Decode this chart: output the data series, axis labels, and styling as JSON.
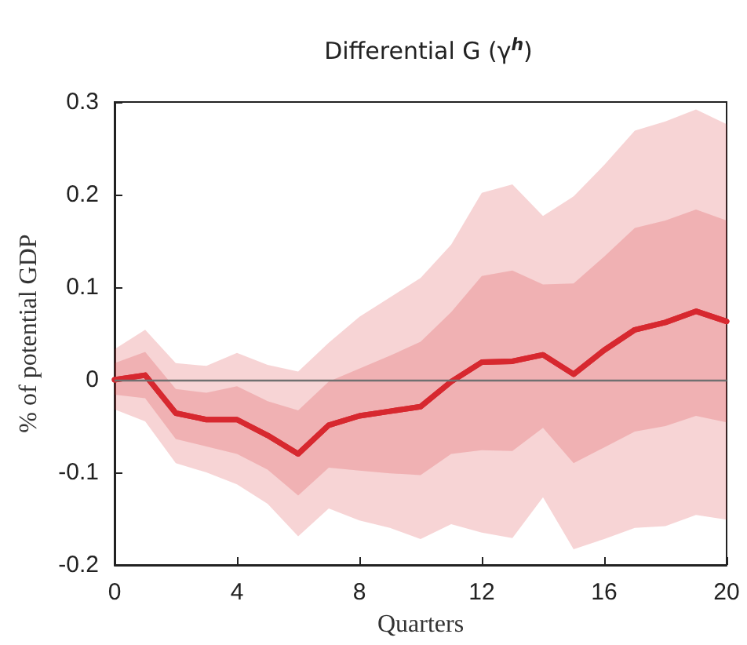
{
  "chart_data": {
    "type": "line",
    "title": "Differential G (γ$^{h}$)",
    "xlabel": "Quarters",
    "ylabel": "% of potential GDP",
    "x": [
      0,
      1,
      2,
      3,
      4,
      5,
      6,
      7,
      8,
      9,
      10,
      11,
      12,
      13,
      14,
      15,
      16,
      17,
      18,
      19,
      20
    ],
    "series": [
      {
        "type": "line",
        "color": "#d7282f",
        "values": [
          0,
          0.005,
          -0.036,
          -0.043,
          -0.043,
          -0.06,
          -0.08,
          -0.049,
          -0.039,
          -0.034,
          -0.029,
          -0.002,
          0.019,
          0.02,
          0.027,
          0.006,
          0.032,
          0.054,
          0.062,
          0.074,
          0.063
        ],
        "lower": [
          -0.032,
          -0.045,
          -0.09,
          -0.1,
          -0.113,
          -0.134,
          -0.169,
          -0.139,
          -0.152,
          -0.16,
          -0.172,
          -0.156,
          -0.165,
          -0.171,
          -0.127,
          -0.183,
          -0.172,
          -0.16,
          -0.158,
          -0.146,
          -0.151
        ],
        "upper": [
          0.033,
          0.054,
          0.018,
          0.015,
          0.029,
          0.016,
          0.009,
          0.04,
          0.068,
          0.089,
          0.11,
          0.146,
          0.202,
          0.211,
          0.177,
          0.198,
          0.232,
          0.269,
          0.279,
          0.292,
          0.276
        ]
      },
      {
        "color": "#d7282f",
        "values": [
          0,
          0.005,
          -0.036,
          -0.043,
          -0.043,
          -0.06,
          -0.08,
          -0.049,
          -0.039,
          -0.034,
          -0.029,
          -0.002,
          0.019,
          0.02,
          0.027,
          0.006,
          0.032,
          0.054,
          0.062,
          0.074,
          0.063
        ],
        "lower": [
          -0.016,
          -0.02,
          -0.064,
          -0.072,
          -0.08,
          -0.097,
          -0.125,
          -0.095,
          -0.098,
          -0.101,
          -0.103,
          -0.08,
          -0.076,
          -0.077,
          -0.052,
          -0.09,
          -0.073,
          -0.056,
          -0.05,
          -0.039,
          -0.046
        ],
        "upper": [
          0.018,
          0.03,
          -0.01,
          -0.014,
          -0.007,
          -0.023,
          -0.033,
          -0.002,
          0.012,
          0.026,
          0.041,
          0.073,
          0.112,
          0.118,
          0.103,
          0.104,
          0.133,
          0.164,
          0.172,
          0.184,
          0.172
        ]
      }
    ],
    "xlim": [
      0,
      20
    ],
    "xticks": [
      0,
      4,
      8,
      12,
      16,
      20
    ],
    "ylim": [
      -0.2,
      0.3
    ],
    "yticks": [
      -0.2,
      -0.1,
      0,
      0.1,
      0.2,
      0.3
    ],
    "ref_lines": [
      {
        "axis": "y",
        "value": 0,
        "color": "#707070"
      }
    ],
    "grid": false,
    "marker": "none",
    "line_style": "solid"
  }
}
